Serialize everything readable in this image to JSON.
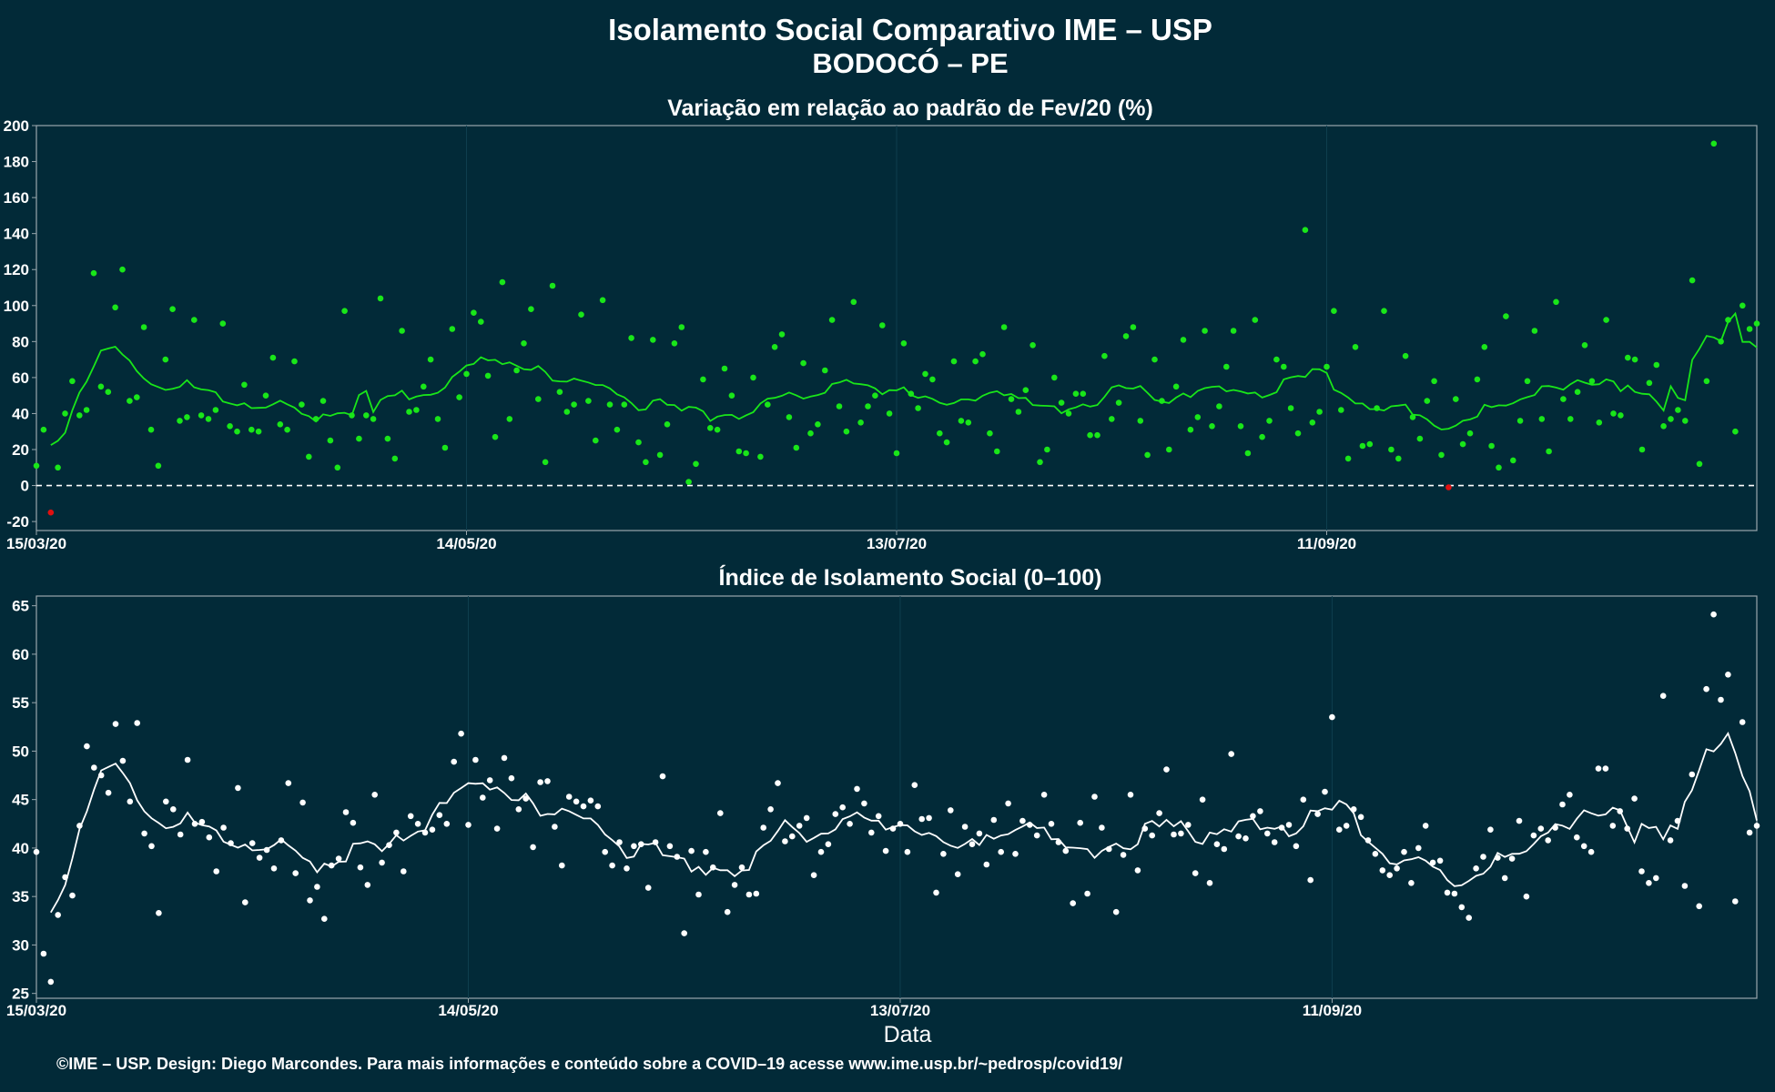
{
  "header": {
    "title_line1": "Isolamento Social Comparativo IME – USP",
    "title_line2": "BODOCÓ – PE"
  },
  "xlabel": "Data",
  "footer": "©IME – USP. Design: Diego Marcondes. Para mais informações e conteúdo sobre a COVID–19 acesse www.ime.usp.br/~pedrosp/covid19/",
  "colors": {
    "background": "#022a38",
    "panel_border": "#9aa7ad",
    "positive": "#19e619",
    "negative": "#e01010",
    "index_series": "#ffffff"
  },
  "chart_data": [
    {
      "type": "scatter",
      "title": "Variação em relação ao padrão de Fev/20 (%)",
      "xlabel": "",
      "ylabel": "",
      "x_start": "15/03/20",
      "x_ticks": [
        "15/03/20",
        "14/05/20",
        "13/07/20",
        "11/09/20"
      ],
      "ylim": [
        -25,
        200
      ],
      "y_ticks": [
        -20,
        0,
        20,
        40,
        60,
        80,
        100,
        120,
        140,
        160,
        180,
        200
      ],
      "reference_line": 0,
      "grid": true,
      "series": [
        {
          "values": [
            11,
            31,
            -15,
            10,
            40,
            58,
            39,
            42,
            118,
            55,
            52,
            99,
            120,
            47,
            49,
            88,
            31,
            11,
            70,
            98,
            36,
            38,
            92,
            39,
            37,
            42,
            90,
            33,
            30,
            56,
            31,
            30,
            50,
            71,
            34,
            31,
            69,
            45,
            16,
            37,
            47,
            25,
            10,
            97,
            39,
            26,
            39,
            37,
            104,
            26,
            15,
            86,
            41,
            42,
            55,
            70,
            37,
            21,
            87,
            49,
            62,
            96,
            91,
            61,
            27,
            113,
            37,
            64,
            79,
            98,
            48,
            13,
            111,
            52,
            41,
            45,
            95,
            47,
            25,
            103,
            45,
            31,
            45,
            82,
            24,
            13,
            81,
            17,
            34,
            79,
            88,
            2,
            12,
            59,
            32,
            31,
            65,
            50,
            19,
            18,
            60,
            16,
            45,
            77,
            84,
            38,
            21,
            68,
            29,
            34,
            64,
            92,
            44,
            30,
            102,
            35,
            44,
            50,
            89,
            40,
            18,
            79,
            51,
            43,
            62,
            59,
            29,
            24,
            69,
            36,
            35,
            69,
            73,
            29,
            19,
            88,
            48,
            41,
            53,
            78,
            13,
            20,
            60,
            46,
            40,
            51,
            51,
            28,
            28,
            72,
            37,
            46,
            83,
            88,
            36,
            17,
            70,
            47,
            20,
            55,
            81,
            31,
            38,
            86,
            33,
            44,
            66,
            86,
            33,
            18,
            92,
            27,
            36,
            70,
            66,
            43,
            29,
            142,
            35,
            41,
            66,
            97,
            42,
            15,
            77,
            22,
            23,
            43,
            97,
            20,
            15,
            72,
            38,
            26,
            47,
            58,
            17,
            -1,
            48,
            23,
            29,
            59,
            77,
            22,
            10,
            94,
            14,
            36,
            58,
            86,
            37,
            19,
            102,
            48,
            37,
            52,
            78,
            58,
            35,
            92,
            40,
            39,
            71,
            70,
            20,
            57,
            67,
            33,
            37,
            42,
            36,
            114,
            12,
            58,
            190,
            80,
            92,
            30,
            100,
            87,
            90
          ]
        }
      ]
    },
    {
      "type": "scatter",
      "title": "Índice de Isolamento Social (0–100)",
      "xlabel": "Data",
      "ylabel": "",
      "x_start": "15/03/20",
      "x_ticks": [
        "15/03/20",
        "14/05/20",
        "13/07/20",
        "11/09/20"
      ],
      "ylim": [
        24.5,
        66
      ],
      "y_ticks": [
        25,
        30,
        35,
        40,
        45,
        50,
        55,
        60,
        65
      ],
      "grid": true,
      "series": [
        {
          "values": [
            39.6,
            29.1,
            26.2,
            33.1,
            37.0,
            35.1,
            42.3,
            50.5,
            48.3,
            47.5,
            45.7,
            52.8,
            49.0,
            44.8,
            52.9,
            41.5,
            40.2,
            33.3,
            44.8,
            44.0,
            41.4,
            49.1,
            42.5,
            42.7,
            41.1,
            37.6,
            42.1,
            40.5,
            46.2,
            34.4,
            40.5,
            39.0,
            39.8,
            37.9,
            40.8,
            46.7,
            37.4,
            44.7,
            34.6,
            36.0,
            32.7,
            38.2,
            38.9,
            43.7,
            42.6,
            38.0,
            36.2,
            45.5,
            38.5,
            40.3,
            41.6,
            37.6,
            43.3,
            42.5,
            41.6,
            41.9,
            43.4,
            42.5,
            48.9,
            51.8,
            42.4,
            49.1,
            45.2,
            47.0,
            42.0,
            49.3,
            47.2,
            44.0,
            45.1,
            40.1,
            46.8,
            46.9,
            42.2,
            38.2,
            45.3,
            44.8,
            44.3,
            44.9,
            44.3,
            39.6,
            38.2,
            40.6,
            37.9,
            40.2,
            40.4,
            35.9,
            40.6,
            47.4,
            40.2,
            39.1,
            31.2,
            39.7,
            35.2,
            39.6,
            38.0,
            43.6,
            33.4,
            36.2,
            38.0,
            35.2,
            35.3,
            42.1,
            44.0,
            46.7,
            40.7,
            41.2,
            42.3,
            43.1,
            37.2,
            39.6,
            40.4,
            43.5,
            44.2,
            42.5,
            46.1,
            44.6,
            41.6,
            43.3,
            39.7,
            42.0,
            42.5,
            39.6,
            46.5,
            43.0,
            43.1,
            35.4,
            39.4,
            43.9,
            37.3,
            42.2,
            40.4,
            41.5,
            38.3,
            42.9,
            39.6,
            44.6,
            39.4,
            42.8,
            42.4,
            41.3,
            45.5,
            42.5,
            40.6,
            39.7,
            34.3,
            42.6,
            35.3,
            45.3,
            42.1,
            39.9,
            33.4,
            39.3,
            45.5,
            37.7,
            42.0,
            41.3,
            43.6,
            48.1,
            41.4,
            41.5,
            42.4,
            37.4,
            45.0,
            36.4,
            40.4,
            39.9,
            49.7,
            41.2,
            41.0,
            43.3,
            43.8,
            41.5,
            40.6,
            42.1,
            42.4,
            40.2,
            45.0,
            36.7,
            43.5,
            45.8,
            53.5,
            41.9,
            42.3,
            44.0,
            43.2,
            40.8,
            39.4,
            37.7,
            37.2,
            37.9,
            39.6,
            36.4,
            40.0,
            42.3,
            38.5,
            38.7,
            35.4,
            35.3,
            33.9,
            32.8,
            37.9,
            39.1,
            41.9,
            39.0,
            36.9,
            38.9,
            42.8,
            35.0,
            41.3,
            42.0,
            40.8,
            42.1,
            44.5,
            45.5,
            41.1,
            40.2,
            39.6,
            48.2,
            48.2,
            42.3,
            43.8,
            42.0,
            45.1,
            37.6,
            36.4,
            36.9,
            55.7,
            40.8,
            42.8,
            36.1,
            47.6,
            34.0,
            56.4,
            64.1,
            55.3,
            57.9,
            34.5,
            53.0,
            41.6,
            42.3
          ]
        }
      ]
    }
  ]
}
